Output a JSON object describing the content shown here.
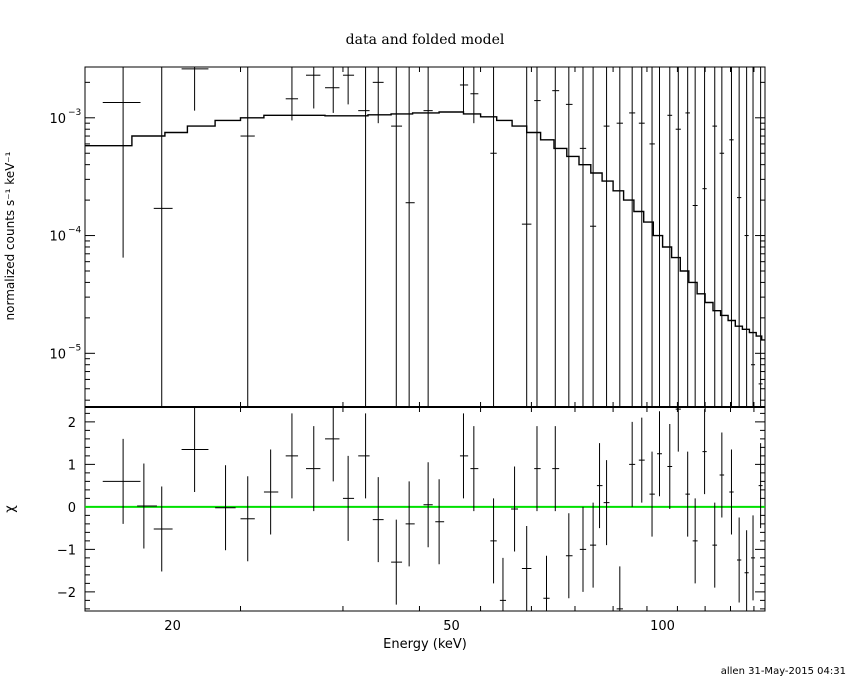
{
  "page": {
    "title": "data and folded model",
    "footer": "allen 31-May-2015 04:31"
  },
  "colors": {
    "ink": "#000000",
    "zero_line": "#00e000",
    "background": "#ffffff"
  },
  "chart_data": [
    {
      "type": "scatter",
      "panel": "top",
      "xlabel": "Energy (keV)",
      "ylabel": "normalized counts s⁻¹ keV⁻¹",
      "xscale": "log",
      "yscale": "log",
      "xlim": [
        15,
        140
      ],
      "ylim": [
        3.5e-06,
        0.0027
      ],
      "y_ticks": [
        {
          "value": 1e-05,
          "base": "10",
          "exp": "−5"
        },
        {
          "value": 0.0001,
          "base": "10",
          "exp": "−4"
        },
        {
          "value": 0.001,
          "base": "10",
          "exp": "−3"
        }
      ],
      "data_points": [
        {
          "x": 17.0,
          "xlo": 15.9,
          "xhi": 18.0,
          "y": 0.00135,
          "ylo": 6.5e-05,
          "yhi": 0.0027
        },
        {
          "x": 19.3,
          "xlo": 18.8,
          "xhi": 20.0,
          "y": 0.00017,
          "ylo": 3.5e-06,
          "yhi": 0.0027
        },
        {
          "x": 21.5,
          "xlo": 20.6,
          "xhi": 22.5,
          "y": 0.0026,
          "ylo": 0.00115,
          "yhi": 0.0027
        },
        {
          "x": 25.6,
          "xlo": 25.0,
          "xhi": 26.2,
          "y": 0.0007,
          "ylo": 3.5e-06,
          "yhi": 0.0027
        },
        {
          "x": 29.6,
          "xlo": 29.0,
          "xhi": 30.2,
          "y": 0.00145,
          "ylo": 0.00095,
          "yhi": 0.0027
        },
        {
          "x": 31.8,
          "xlo": 31.0,
          "xhi": 32.5,
          "y": 0.0023,
          "ylo": 0.0012,
          "yhi": 0.0027
        },
        {
          "x": 33.9,
          "xlo": 33.0,
          "xhi": 34.6,
          "y": 0.0018,
          "ylo": 0.0011,
          "yhi": 0.0027
        },
        {
          "x": 35.6,
          "xlo": 35.0,
          "xhi": 36.3,
          "y": 0.0023,
          "ylo": 0.0013,
          "yhi": 0.0027
        },
        {
          "x": 37.7,
          "xlo": 36.8,
          "xhi": 38.2,
          "y": 0.00115,
          "ylo": 3.5e-06,
          "yhi": 0.0027
        },
        {
          "x": 39.3,
          "xlo": 38.6,
          "xhi": 40.0,
          "y": 0.002,
          "ylo": 0.0009,
          "yhi": 0.0027
        },
        {
          "x": 41.7,
          "xlo": 41.0,
          "xhi": 42.5,
          "y": 0.00085,
          "ylo": 3.5e-06,
          "yhi": 0.0027
        },
        {
          "x": 43.5,
          "xlo": 43.0,
          "xhi": 44.3,
          "y": 0.00019,
          "ylo": 3.5e-06,
          "yhi": 0.0027
        },
        {
          "x": 46.3,
          "xlo": 45.6,
          "xhi": 47.0,
          "y": 0.00115,
          "ylo": 3.5e-06,
          "yhi": 0.0027
        },
        {
          "x": 52.0,
          "xlo": 51.4,
          "xhi": 52.8,
          "y": 0.0019,
          "ylo": 0.0011,
          "yhi": 0.0027
        },
        {
          "x": 53.8,
          "xlo": 53.2,
          "xhi": 54.6,
          "y": 0.0016,
          "ylo": 0.0009,
          "yhi": 0.0027
        },
        {
          "x": 57.4,
          "xlo": 56.8,
          "xhi": 58.0,
          "y": 0.0005,
          "ylo": 3.5e-06,
          "yhi": 0.0027
        },
        {
          "x": 64.0,
          "xlo": 63.0,
          "xhi": 65.0,
          "y": 0.000125,
          "ylo": 3.5e-06,
          "yhi": 0.0027
        },
        {
          "x": 66.2,
          "xlo": 65.6,
          "xhi": 67.0,
          "y": 0.0014,
          "ylo": 3.5e-06,
          "yhi": 0.0027
        },
        {
          "x": 70.3,
          "xlo": 69.6,
          "xhi": 71.2,
          "y": 0.0017,
          "ylo": 3.5e-06,
          "yhi": 0.0027
        },
        {
          "x": 73.5,
          "xlo": 72.8,
          "xhi": 74.4,
          "y": 0.0013,
          "ylo": 3.5e-06,
          "yhi": 0.0027
        },
        {
          "x": 77.0,
          "xlo": 76.2,
          "xhi": 77.8,
          "y": 0.00055,
          "ylo": 3.5e-06,
          "yhi": 0.0027
        },
        {
          "x": 79.6,
          "xlo": 78.8,
          "xhi": 80.4,
          "y": 0.00012,
          "ylo": 3.5e-06,
          "yhi": 0.0027
        },
        {
          "x": 83.2,
          "xlo": 82.4,
          "xhi": 84.0,
          "y": 0.00085,
          "ylo": 3.5e-06,
          "yhi": 0.0027
        },
        {
          "x": 86.9,
          "xlo": 86.0,
          "xhi": 87.8,
          "y": 0.0009,
          "ylo": 3.5e-06,
          "yhi": 0.0027
        },
        {
          "x": 90.5,
          "xlo": 89.6,
          "xhi": 91.4,
          "y": 0.0011,
          "ylo": 3.5e-06,
          "yhi": 0.0027
        },
        {
          "x": 93.4,
          "xlo": 92.5,
          "xhi": 94.3,
          "y": 0.0009,
          "ylo": 3.5e-06,
          "yhi": 0.0027
        },
        {
          "x": 96.6,
          "xlo": 95.8,
          "xhi": 97.5,
          "y": 0.0006,
          "ylo": 3.5e-06,
          "yhi": 0.0027
        },
        {
          "x": 99.0,
          "xlo": 98.2,
          "xhi": 99.8,
          "y": 0.0001,
          "ylo": 3.5e-06,
          "yhi": 0.0027
        },
        {
          "x": 102.4,
          "xlo": 101.6,
          "xhi": 103.2,
          "y": 0.00105,
          "ylo": 3.5e-06,
          "yhi": 0.0027
        },
        {
          "x": 105.3,
          "xlo": 104.4,
          "xhi": 106.2,
          "y": 0.0008,
          "ylo": 3.5e-06,
          "yhi": 0.0027
        },
        {
          "x": 108.6,
          "xlo": 107.8,
          "xhi": 109.4,
          "y": 0.0011,
          "ylo": 3.5e-06,
          "yhi": 0.0027
        },
        {
          "x": 111.3,
          "xlo": 110.4,
          "xhi": 112.2,
          "y": 0.00018,
          "ylo": 3.5e-06,
          "yhi": 0.0027
        },
        {
          "x": 114.8,
          "xlo": 114.0,
          "xhi": 115.6,
          "y": 0.00025,
          "ylo": 3.5e-06,
          "yhi": 0.0027
        },
        {
          "x": 118.7,
          "xlo": 117.8,
          "xhi": 119.6,
          "y": 0.00085,
          "ylo": 3.5e-06,
          "yhi": 0.0027
        },
        {
          "x": 121.5,
          "xlo": 120.6,
          "xhi": 122.4,
          "y": 0.0005,
          "ylo": 3.5e-06,
          "yhi": 0.0027
        },
        {
          "x": 125.4,
          "xlo": 124.5,
          "xhi": 126.3,
          "y": 0.00065,
          "ylo": 3.5e-06,
          "yhi": 0.0027
        },
        {
          "x": 128.6,
          "xlo": 127.7,
          "xhi": 129.5,
          "y": 0.00021,
          "ylo": 3.5e-06,
          "yhi": 0.0027
        },
        {
          "x": 131.8,
          "xlo": 130.9,
          "xhi": 132.7,
          "y": 0.0001,
          "ylo": 3.5e-06,
          "yhi": 0.0027
        },
        {
          "x": 134.6,
          "xlo": 133.7,
          "xhi": 135.5,
          "y": 8e-06,
          "ylo": 3.5e-06,
          "yhi": 0.0027
        },
        {
          "x": 138.0,
          "xlo": 137.1,
          "xhi": 138.9,
          "y": 5.5e-06,
          "ylo": 3.5e-06,
          "yhi": 0.0027
        }
      ],
      "model_edges": [
        15,
        17.5,
        19.5,
        21.0,
        23.0,
        25.0,
        27.0,
        29.0,
        31.0,
        33.0,
        35.0,
        38.0,
        41.0,
        44.0,
        48.0,
        52.0,
        55.0,
        58.0,
        61.0,
        64.0,
        67.0,
        70.0,
        73.0,
        76.0,
        79.0,
        82.0,
        85.0,
        88.0,
        91.0,
        94.0,
        97.0,
        100.0,
        103.0,
        106.0,
        109.0,
        112.0,
        115.0,
        118.0,
        121.0,
        124.0,
        127.0,
        130.0,
        133.0,
        136.0,
        138.5,
        140.0
      ],
      "model_values": [
        0.00058,
        0.0007,
        0.00075,
        0.00085,
        0.00095,
        0.001,
        0.00105,
        0.00105,
        0.00105,
        0.00104,
        0.00104,
        0.00106,
        0.00108,
        0.0011,
        0.00112,
        0.00108,
        0.00102,
        0.00095,
        0.00085,
        0.00075,
        0.00065,
        0.00055,
        0.00047,
        0.0004,
        0.00034,
        0.00029,
        0.00024,
        0.0002,
        0.00016,
        0.00013,
        0.0001,
        8e-05,
        6.5e-05,
        5e-05,
        4e-05,
        3.2e-05,
        2.7e-05,
        2.3e-05,
        2.1e-05,
        1.9e-05,
        1.7e-05,
        1.6e-05,
        1.5e-05,
        1.4e-05,
        1.3e-05
      ]
    },
    {
      "type": "scatter",
      "panel": "bottom",
      "xlabel": "Energy (keV)",
      "ylabel": "χ",
      "xscale": "log",
      "xlim": [
        15,
        140
      ],
      "ylim": [
        -2.45,
        2.35
      ],
      "y_ticks": [
        {
          "value": 2,
          "label": "2"
        },
        {
          "value": 1,
          "label": "1"
        },
        {
          "value": 0,
          "label": "0"
        },
        {
          "value": -1,
          "label": "−1"
        },
        {
          "value": -2,
          "label": "−2"
        }
      ],
      "x_ticks": [
        {
          "value": 20,
          "label": "20"
        },
        {
          "value": 50,
          "label": "50"
        },
        {
          "value": 100,
          "label": "100"
        }
      ],
      "data_points": [
        {
          "x": 17.0,
          "xlo": 15.9,
          "xhi": 18.0,
          "y": 0.6,
          "ylo": -0.4,
          "yhi": 1.6
        },
        {
          "x": 18.2,
          "xlo": 17.8,
          "xhi": 19.0,
          "y": 0.02,
          "ylo": -0.98,
          "yhi": 1.02
        },
        {
          "x": 19.3,
          "xlo": 18.8,
          "xhi": 20.0,
          "y": -0.52,
          "ylo": -1.52,
          "yhi": 0.48
        },
        {
          "x": 21.5,
          "xlo": 20.6,
          "xhi": 22.5,
          "y": 1.35,
          "ylo": 0.35,
          "yhi": 2.35
        },
        {
          "x": 23.8,
          "xlo": 23.0,
          "xhi": 24.6,
          "y": -0.02,
          "ylo": -1.02,
          "yhi": 0.98
        },
        {
          "x": 25.6,
          "xlo": 25.0,
          "xhi": 26.2,
          "y": -0.28,
          "ylo": -1.28,
          "yhi": 0.72
        },
        {
          "x": 27.6,
          "xlo": 27.0,
          "xhi": 28.3,
          "y": 0.35,
          "ylo": -0.65,
          "yhi": 1.35
        },
        {
          "x": 29.6,
          "xlo": 29.0,
          "xhi": 30.2,
          "y": 1.2,
          "ylo": 0.2,
          "yhi": 2.2
        },
        {
          "x": 31.8,
          "xlo": 31.0,
          "xhi": 32.5,
          "y": 0.9,
          "ylo": -0.1,
          "yhi": 1.9
        },
        {
          "x": 33.9,
          "xlo": 33.0,
          "xhi": 34.6,
          "y": 1.6,
          "ylo": 0.6,
          "yhi": 2.35
        },
        {
          "x": 35.6,
          "xlo": 35.0,
          "xhi": 36.3,
          "y": 0.2,
          "ylo": -0.8,
          "yhi": 1.2
        },
        {
          "x": 37.7,
          "xlo": 36.8,
          "xhi": 38.2,
          "y": 1.2,
          "ylo": 0.2,
          "yhi": 2.2
        },
        {
          "x": 39.3,
          "xlo": 38.6,
          "xhi": 40.0,
          "y": -0.3,
          "ylo": -1.3,
          "yhi": 0.7
        },
        {
          "x": 41.7,
          "xlo": 41.0,
          "xhi": 42.5,
          "y": -1.3,
          "ylo": -2.3,
          "yhi": -0.3
        },
        {
          "x": 43.5,
          "xlo": 43.0,
          "xhi": 44.3,
          "y": -0.4,
          "ylo": -1.4,
          "yhi": 0.6
        },
        {
          "x": 46.3,
          "xlo": 45.6,
          "xhi": 47.0,
          "y": 0.05,
          "ylo": -0.95,
          "yhi": 1.05
        },
        {
          "x": 48.0,
          "xlo": 47.4,
          "xhi": 48.8,
          "y": -0.35,
          "ylo": -1.35,
          "yhi": 0.65
        },
        {
          "x": 52.0,
          "xlo": 51.4,
          "xhi": 52.8,
          "y": 1.2,
          "ylo": 0.2,
          "yhi": 2.2
        },
        {
          "x": 53.8,
          "xlo": 53.2,
          "xhi": 54.6,
          "y": 0.9,
          "ylo": -0.1,
          "yhi": 1.9
        },
        {
          "x": 57.4,
          "xlo": 56.8,
          "xhi": 58.0,
          "y": -0.8,
          "ylo": -1.8,
          "yhi": 0.2
        },
        {
          "x": 59.2,
          "xlo": 58.6,
          "xhi": 59.8,
          "y": -2.2,
          "ylo": -2.45,
          "yhi": -1.2
        },
        {
          "x": 61.5,
          "xlo": 60.8,
          "xhi": 62.2,
          "y": -0.05,
          "ylo": -1.05,
          "yhi": 0.95
        },
        {
          "x": 64.0,
          "xlo": 63.0,
          "xhi": 65.0,
          "y": -1.45,
          "ylo": -2.45,
          "yhi": -0.45
        },
        {
          "x": 66.2,
          "xlo": 65.6,
          "xhi": 67.0,
          "y": 0.9,
          "ylo": -0.1,
          "yhi": 1.9
        },
        {
          "x": 68.3,
          "xlo": 67.6,
          "xhi": 69.0,
          "y": -2.15,
          "ylo": -2.45,
          "yhi": -1.15
        },
        {
          "x": 70.3,
          "xlo": 69.6,
          "xhi": 71.2,
          "y": 0.9,
          "ylo": -0.1,
          "yhi": 1.9
        },
        {
          "x": 73.5,
          "xlo": 72.8,
          "xhi": 74.4,
          "y": -1.15,
          "ylo": -2.15,
          "yhi": -0.15
        },
        {
          "x": 77.0,
          "xlo": 76.2,
          "xhi": 77.8,
          "y": -1.0,
          "ylo": -2.0,
          "yhi": 0.0
        },
        {
          "x": 79.6,
          "xlo": 78.8,
          "xhi": 80.4,
          "y": -0.9,
          "ylo": -1.9,
          "yhi": 0.1
        },
        {
          "x": 81.3,
          "xlo": 80.6,
          "xhi": 82.1,
          "y": 0.5,
          "ylo": -0.5,
          "yhi": 1.5
        },
        {
          "x": 83.2,
          "xlo": 82.4,
          "xhi": 84.0,
          "y": 0.1,
          "ylo": -0.9,
          "yhi": 1.1
        },
        {
          "x": 86.9,
          "xlo": 86.0,
          "xhi": 87.8,
          "y": -2.4,
          "ylo": -2.45,
          "yhi": -1.4
        },
        {
          "x": 90.5,
          "xlo": 89.6,
          "xhi": 91.4,
          "y": 1.0,
          "ylo": 0.0,
          "yhi": 2.0
        },
        {
          "x": 93.4,
          "xlo": 92.5,
          "xhi": 94.3,
          "y": 1.1,
          "ylo": 0.1,
          "yhi": 2.1
        },
        {
          "x": 96.6,
          "xlo": 95.8,
          "xhi": 97.5,
          "y": 0.3,
          "ylo": -0.7,
          "yhi": 1.3
        },
        {
          "x": 99.0,
          "xlo": 98.2,
          "xhi": 99.8,
          "y": 1.25,
          "ylo": 0.25,
          "yhi": 2.25
        },
        {
          "x": 102.4,
          "xlo": 101.6,
          "xhi": 103.2,
          "y": 0.95,
          "ylo": -0.05,
          "yhi": 1.95
        },
        {
          "x": 105.3,
          "xlo": 104.4,
          "xhi": 106.2,
          "y": 2.3,
          "ylo": 1.3,
          "yhi": 2.35
        },
        {
          "x": 108.6,
          "xlo": 107.8,
          "xhi": 109.4,
          "y": 0.3,
          "ylo": -0.7,
          "yhi": 1.3
        },
        {
          "x": 111.3,
          "xlo": 110.4,
          "xhi": 112.2,
          "y": -0.8,
          "ylo": -1.8,
          "yhi": 0.2
        },
        {
          "x": 114.8,
          "xlo": 114.0,
          "xhi": 115.6,
          "y": 1.3,
          "ylo": 0.3,
          "yhi": 2.3
        },
        {
          "x": 118.7,
          "xlo": 117.8,
          "xhi": 119.6,
          "y": -0.9,
          "ylo": -1.9,
          "yhi": 0.1
        },
        {
          "x": 121.5,
          "xlo": 120.6,
          "xhi": 122.4,
          "y": 0.75,
          "ylo": -0.25,
          "yhi": 1.75
        },
        {
          "x": 125.4,
          "xlo": 124.5,
          "xhi": 126.3,
          "y": 0.35,
          "ylo": -0.65,
          "yhi": 1.35
        },
        {
          "x": 128.6,
          "xlo": 127.7,
          "xhi": 129.5,
          "y": -1.25,
          "ylo": -2.25,
          "yhi": -0.25
        },
        {
          "x": 131.8,
          "xlo": 130.9,
          "xhi": 132.7,
          "y": -1.55,
          "ylo": -2.45,
          "yhi": -0.55
        },
        {
          "x": 134.6,
          "xlo": 133.7,
          "xhi": 135.5,
          "y": -1.2,
          "ylo": -2.2,
          "yhi": -0.2
        },
        {
          "x": 138.0,
          "xlo": 137.1,
          "xhi": 138.9,
          "y": 0.5,
          "ylo": -0.5,
          "yhi": 1.5
        }
      ],
      "zero_line": 0
    }
  ]
}
